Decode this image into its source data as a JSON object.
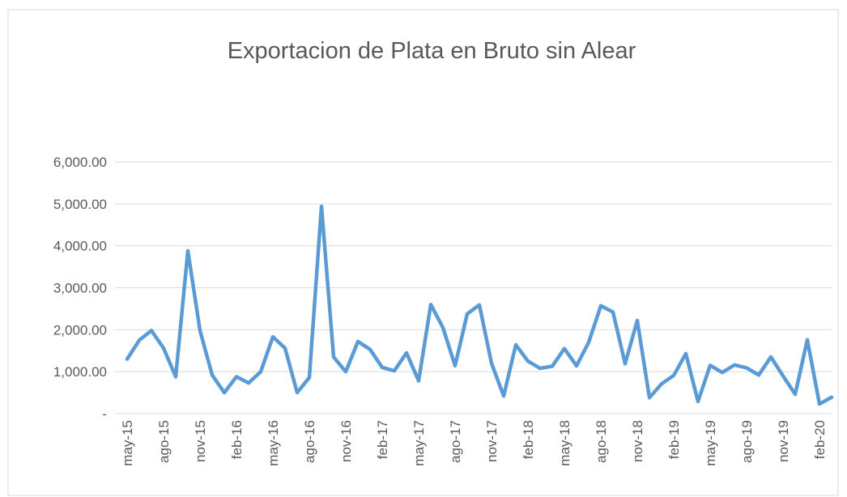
{
  "chart_data": {
    "type": "line",
    "title": "Exportacion de Plata en Bruto sin Alear",
    "categories": [
      "may-15",
      null,
      null,
      "ago-15",
      null,
      null,
      "nov-15",
      null,
      null,
      "feb-16",
      null,
      null,
      "may-16",
      null,
      null,
      "ago-16",
      null,
      null,
      "nov-16",
      null,
      null,
      "feb-17",
      null,
      null,
      "may-17",
      null,
      null,
      "ago-17",
      null,
      null,
      "nov-17",
      null,
      null,
      "feb-18",
      null,
      null,
      "may-18",
      null,
      null,
      "ago-18",
      null,
      null,
      "nov-18",
      null,
      null,
      "feb-19",
      null,
      null,
      "may-19",
      null,
      null,
      "ago-19",
      null,
      null,
      "nov-19",
      null,
      null,
      "feb-20",
      null
    ],
    "values": [
      1300,
      1750,
      1980,
      1560,
      880,
      3880,
      1980,
      920,
      500,
      880,
      730,
      1000,
      1830,
      1560,
      500,
      860,
      4940,
      1350,
      1000,
      1720,
      1530,
      1100,
      1020,
      1450,
      780,
      2600,
      2050,
      1140,
      2380,
      2590,
      1200,
      420,
      1640,
      1250,
      1080,
      1130,
      1550,
      1140,
      1700,
      2570,
      2420,
      1190,
      2220,
      380,
      710,
      910,
      1430,
      290,
      1150,
      980,
      1160,
      1090,
      920,
      1350,
      900,
      460,
      1760,
      230,
      390
    ],
    "color": "#5b9bd5",
    "ylim": [
      0,
      6000
    ],
    "yticks": [
      {
        "value": 0,
        "label": "-"
      },
      {
        "value": 1000,
        "label": "1,000.00"
      },
      {
        "value": 2000,
        "label": "2,000.00"
      },
      {
        "value": 3000,
        "label": "3,000.00"
      },
      {
        "value": 4000,
        "label": "4,000.00"
      },
      {
        "value": 5000,
        "label": "5,000.00"
      },
      {
        "value": 6000,
        "label": "6,000.00"
      }
    ],
    "grid": true
  }
}
